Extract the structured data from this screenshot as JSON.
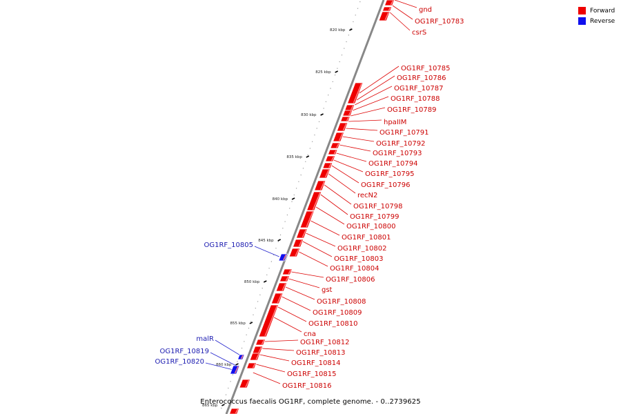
{
  "colors": {
    "forward": "#ee0000",
    "reverse": "#1010ee",
    "backbone": "#888888",
    "leader_forward": "#dd0000",
    "leader_reverse": "#2020cc"
  },
  "legend": [
    {
      "label": "Forward",
      "color": "#ee0000"
    },
    {
      "label": "Reverse",
      "color": "#1010ee"
    }
  ],
  "caption": "Enterococcus faecalis OG1RF, complete genome. - 0..2739625",
  "ruler_ticks": [
    "820 kbp",
    "825 kbp",
    "830 kbp",
    "835 kbp",
    "840 kbp",
    "845 kbp",
    "850 kbp",
    "855 kbp",
    "860 kbp",
    "865 kbp"
  ],
  "forward_labels": [
    "gnd",
    "OG1RF_10783",
    "csrS",
    "OG1RF_10785",
    "OG1RF_10786",
    "OG1RF_10787",
    "OG1RF_10788",
    "OG1RF_10789",
    "hpaIIM",
    "OG1RF_10791",
    "OG1RF_10792",
    "OG1RF_10793",
    "OG1RF_10794",
    "OG1RF_10795",
    "OG1RF_10796",
    "recN2",
    "OG1RF_10798",
    "OG1RF_10799",
    "OG1RF_10800",
    "OG1RF_10801",
    "OG1RF_10802",
    "OG1RF_10803",
    "OG1RF_10804",
    "OG1RF_10806",
    "gst",
    "OG1RF_10808",
    "OG1RF_10809",
    "OG1RF_10810",
    "cna",
    "OG1RF_10812",
    "OG1RF_10813",
    "OG1RF_10814",
    "OG1RF_10815",
    "OG1RF_10816"
  ],
  "reverse_labels": [
    "OG1RF_10805",
    "malR",
    "OG1RF_10819",
    "OG1RF_10820"
  ]
}
